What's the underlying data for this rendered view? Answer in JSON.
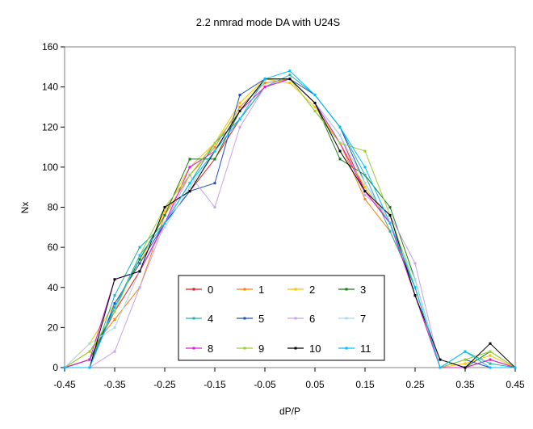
{
  "chart_data": {
    "type": "line",
    "title": "2.2 nmrad mode DA with U24S",
    "xlabel": "dP/P",
    "ylabel": "Nx",
    "xlim": [
      -0.45,
      0.45
    ],
    "ylim": [
      0,
      160
    ],
    "x_ticks": [
      "-0.45",
      "-0.35",
      "-0.25",
      "-0.15",
      "-0.05",
      "0.05",
      "0.15",
      "0.25",
      "0.35",
      "0.45"
    ],
    "y_ticks": [
      "0",
      "20",
      "40",
      "60",
      "80",
      "100",
      "120",
      "140",
      "160"
    ],
    "grid": false,
    "legend_position": "bottom-center",
    "x": [
      -0.45,
      -0.4,
      -0.35,
      -0.3,
      -0.25,
      -0.2,
      -0.15,
      -0.1,
      -0.05,
      0.0,
      0.05,
      0.1,
      0.15,
      0.2,
      0.25,
      0.3,
      0.35,
      0.4,
      0.45
    ],
    "series": [
      {
        "name": "0",
        "color": "#e31a1c",
        "values": [
          0,
          4,
          28,
          48,
          72,
          88,
          104,
          124,
          140,
          144,
          132,
          116,
          88,
          72,
          36,
          0,
          0,
          4,
          0
        ]
      },
      {
        "name": "1",
        "color": "#ff7f00",
        "values": [
          0,
          8,
          24,
          40,
          76,
          96,
          110,
          130,
          142,
          144,
          128,
          112,
          84,
          68,
          40,
          0,
          0,
          4,
          0
        ]
      },
      {
        "name": "2",
        "color": "#ffc000",
        "values": [
          0,
          12,
          32,
          52,
          78,
          100,
          112,
          132,
          144,
          142,
          130,
          112,
          90,
          72,
          36,
          0,
          2,
          6,
          0
        ]
      },
      {
        "name": "3",
        "color": "#1a7a1a",
        "values": [
          0,
          4,
          30,
          54,
          76,
          104,
          104,
          128,
          144,
          144,
          132,
          104,
          96,
          80,
          44,
          0,
          0,
          8,
          0
        ]
      },
      {
        "name": "4",
        "color": "#20b2aa",
        "values": [
          0,
          0,
          36,
          60,
          72,
          92,
          112,
          124,
          140,
          146,
          136,
          120,
          96,
          68,
          40,
          0,
          8,
          2,
          0
        ]
      },
      {
        "name": "5",
        "color": "#1f4fbf",
        "values": [
          0,
          0,
          32,
          52,
          72,
          88,
          92,
          136,
          144,
          144,
          136,
          120,
          92,
          72,
          40,
          0,
          4,
          0,
          0
        ]
      },
      {
        "name": "6",
        "color": "#c8a2e8",
        "values": [
          0,
          0,
          8,
          40,
          72,
          96,
          80,
          120,
          140,
          144,
          132,
          116,
          86,
          76,
          52,
          0,
          0,
          4,
          0
        ]
      },
      {
        "name": "7",
        "color": "#a8d8ea",
        "values": [
          0,
          12,
          20,
          48,
          70,
          90,
          108,
          128,
          144,
          144,
          132,
          116,
          92,
          72,
          44,
          0,
          4,
          8,
          0
        ]
      },
      {
        "name": "8",
        "color": "#d81bd8",
        "values": [
          0,
          4,
          44,
          48,
          72,
          100,
          108,
          128,
          140,
          144,
          132,
          112,
          88,
          72,
          36,
          0,
          0,
          4,
          0
        ]
      },
      {
        "name": "9",
        "color": "#9acd32",
        "values": [
          0,
          8,
          28,
          56,
          80,
          96,
          112,
          128,
          144,
          144,
          128,
          112,
          108,
          76,
          40,
          0,
          4,
          8,
          0
        ]
      },
      {
        "name": "10",
        "color": "#000000",
        "values": [
          0,
          0,
          44,
          48,
          80,
          88,
          108,
          128,
          144,
          144,
          132,
          108,
          88,
          76,
          36,
          4,
          0,
          12,
          0
        ]
      },
      {
        "name": "11",
        "color": "#00bfff",
        "values": [
          0,
          0,
          30,
          56,
          72,
          92,
          108,
          124,
          144,
          148,
          136,
          120,
          100,
          72,
          40,
          0,
          8,
          0,
          0
        ]
      }
    ]
  }
}
